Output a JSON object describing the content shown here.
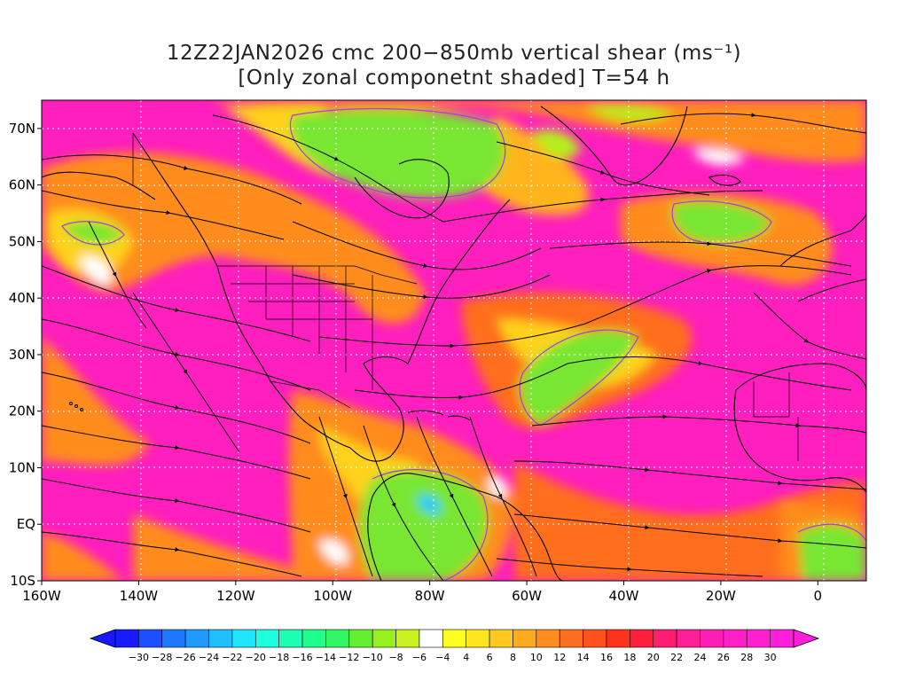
{
  "title": {
    "line1": "12Z22JAN2026 cmc 200−850mb vertical shear (ms⁻¹)",
    "line2": "[Only zonal componetnt shaded] T=54 h"
  },
  "axes": {
    "lat_labels": [
      "70N",
      "60N",
      "50N",
      "40N",
      "30N",
      "20N",
      "10N",
      "EQ",
      "10S"
    ],
    "lon_labels": [
      "160W",
      "140W",
      "120W",
      "100W",
      "80W",
      "60W",
      "40W",
      "20W",
      "0"
    ],
    "lon_values": [
      -160,
      -140,
      -120,
      -100,
      -80,
      -60,
      -40,
      -20,
      0
    ],
    "lat_values": [
      70,
      60,
      50,
      40,
      30,
      20,
      10,
      0,
      -10
    ],
    "lon_range": [
      -160,
      10
    ],
    "lat_range": [
      -10,
      75
    ]
  },
  "colorbar": {
    "labels": [
      "−30",
      "−28",
      "−26",
      "−24",
      "−22",
      "−20",
      "−18",
      "−16",
      "−14",
      "−12",
      "−10",
      "−8",
      "−6",
      "−4",
      "4",
      "6",
      "8",
      "10",
      "12",
      "14",
      "16",
      "18",
      "20",
      "22",
      "24",
      "26",
      "28",
      "30"
    ],
    "colors": [
      "#1a1aff",
      "#1a50ff",
      "#1e78ff",
      "#1e9bff",
      "#1ebeff",
      "#1ee6ff",
      "#1effe0",
      "#1effb4",
      "#1eff8c",
      "#32f564",
      "#64f032",
      "#96f01e",
      "#c8f01e",
      "#ffffff",
      "#ffff1e",
      "#ffe61e",
      "#ffc81e",
      "#ffaa1e",
      "#ff8c1e",
      "#ff6e1e",
      "#ff501e",
      "#ff321e",
      "#ff1e3c",
      "#ff1e6e",
      "#ff1e96",
      "#ff1eb4",
      "#ff1ec8",
      "#ff1ed2",
      "#ff1edc"
    ]
  },
  "palette": {
    "magenta": "#ff1ebe",
    "pink": "#ff3c8c",
    "orange": "#ff8c1e",
    "yellow": "#ffd21e",
    "green": "#78e632",
    "lightgreen": "#b4f01e",
    "white": "#ffffff",
    "purple": "#b03cd0"
  }
}
